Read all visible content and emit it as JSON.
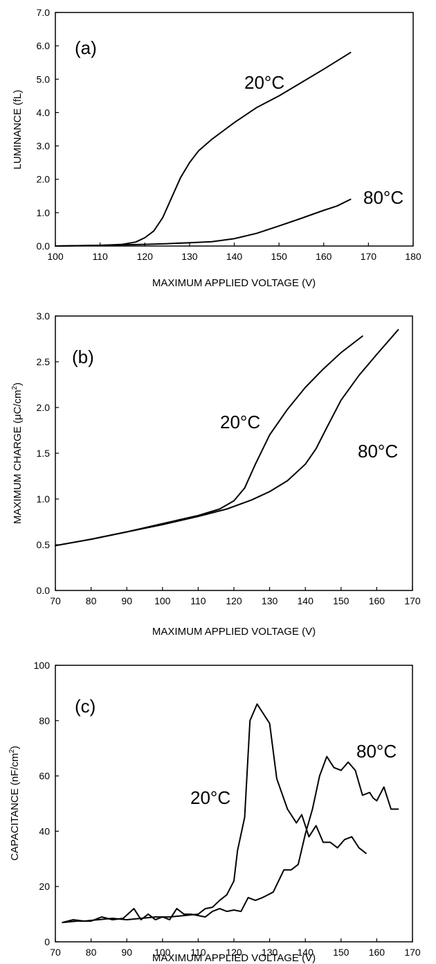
{
  "chart_data": [
    {
      "type": "line",
      "panel_label": "(a)",
      "xlabel": "MAXIMUM APPLIED VOLTAGE (V)",
      "ylabel": "LUMINANCE (fL)",
      "xlim": [
        100,
        180
      ],
      "ylim": [
        0,
        7
      ],
      "x_ticks": [
        "100",
        "110",
        "120",
        "130",
        "140",
        "150",
        "160",
        "170",
        "180"
      ],
      "y_ticks": [
        "0.0",
        "1.0",
        "2.0",
        "3.0",
        "4.0",
        "5.0",
        "6.0",
        "7.0"
      ],
      "grid": false,
      "series": [
        {
          "name": "20°C",
          "points": [
            [
              100,
              0
            ],
            [
              110,
              0.02
            ],
            [
              115,
              0.05
            ],
            [
              118,
              0.12
            ],
            [
              120,
              0.25
            ],
            [
              122,
              0.45
            ],
            [
              124,
              0.85
            ],
            [
              126,
              1.45
            ],
            [
              128,
              2.05
            ],
            [
              130,
              2.5
            ],
            [
              132,
              2.85
            ],
            [
              135,
              3.2
            ],
            [
              138,
              3.5
            ],
            [
              140,
              3.7
            ],
            [
              145,
              4.15
            ],
            [
              150,
              4.5
            ],
            [
              155,
              4.9
            ],
            [
              160,
              5.3
            ],
            [
              166,
              5.8
            ]
          ]
        },
        {
          "name": "80°C",
          "points": [
            [
              100,
              0
            ],
            [
              110,
              0.02
            ],
            [
              120,
              0.05
            ],
            [
              125,
              0.07
            ],
            [
              130,
              0.1
            ],
            [
              135,
              0.13
            ],
            [
              140,
              0.22
            ],
            [
              145,
              0.38
            ],
            [
              150,
              0.6
            ],
            [
              155,
              0.83
            ],
            [
              160,
              1.07
            ],
            [
              163,
              1.2
            ],
            [
              166,
              1.4
            ]
          ]
        }
      ]
    },
    {
      "type": "line",
      "panel_label": "(b)",
      "xlabel": "MAXIMUM APPLIED VOLTAGE (V)",
      "ylabel": "MAXIMUM CHARGE (μC/cm²)",
      "ylabel_parts": [
        "MAXIMUM CHARGE (μC/cm",
        "2",
        ")"
      ],
      "xlim": [
        70,
        170
      ],
      "ylim": [
        0,
        3
      ],
      "x_ticks": [
        "70",
        "80",
        "90",
        "100",
        "110",
        "120",
        "130",
        "140",
        "150",
        "160",
        "170"
      ],
      "y_ticks": [
        "0.0",
        "0.5",
        "1.0",
        "1.5",
        "2.0",
        "2.5",
        "3.0"
      ],
      "grid": false,
      "series": [
        {
          "name": "20°C",
          "points": [
            [
              70,
              0.49
            ],
            [
              80,
              0.56
            ],
            [
              90,
              0.64
            ],
            [
              100,
              0.73
            ],
            [
              110,
              0.82
            ],
            [
              116,
              0.89
            ],
            [
              120,
              0.98
            ],
            [
              123,
              1.12
            ],
            [
              126,
              1.38
            ],
            [
              130,
              1.7
            ],
            [
              135,
              1.98
            ],
            [
              140,
              2.22
            ],
            [
              145,
              2.42
            ],
            [
              150,
              2.6
            ],
            [
              156,
              2.78
            ]
          ]
        },
        {
          "name": "80°C",
          "points": [
            [
              70,
              0.49
            ],
            [
              80,
              0.56
            ],
            [
              90,
              0.64
            ],
            [
              100,
              0.72
            ],
            [
              110,
              0.81
            ],
            [
              118,
              0.89
            ],
            [
              125,
              0.99
            ],
            [
              130,
              1.08
            ],
            [
              135,
              1.2
            ],
            [
              140,
              1.38
            ],
            [
              143,
              1.55
            ],
            [
              146,
              1.78
            ],
            [
              150,
              2.08
            ],
            [
              155,
              2.35
            ],
            [
              160,
              2.58
            ],
            [
              166,
              2.85
            ]
          ]
        }
      ]
    },
    {
      "type": "line",
      "panel_label": "(c)",
      "xlabel": "MAXIMUM APPLIED VOLTAGE (V)",
      "ylabel": "CAPACITANCE (nF/cm²)",
      "ylabel_parts": [
        "CAPACITANCE (nF/cm",
        "2",
        ")"
      ],
      "xlim": [
        70,
        170
      ],
      "ylim": [
        0,
        100
      ],
      "x_ticks": [
        "70",
        "80",
        "90",
        "100",
        "110",
        "120",
        "130",
        "140",
        "150",
        "160",
        "170"
      ],
      "y_ticks": [
        "0",
        "20",
        "40",
        "60",
        "80",
        "100"
      ],
      "grid": false,
      "series": [
        {
          "name": "20°C",
          "points": [
            [
              72,
              7
            ],
            [
              75,
              8
            ],
            [
              78,
              7.5
            ],
            [
              82,
              8
            ],
            [
              86,
              8.5
            ],
            [
              90,
              8
            ],
            [
              94,
              8.5
            ],
            [
              98,
              9
            ],
            [
              102,
              9
            ],
            [
              106,
              9.5
            ],
            [
              110,
              10
            ],
            [
              112,
              12
            ],
            [
              114,
              12.5
            ],
            [
              116,
              15
            ],
            [
              118,
              17
            ],
            [
              120,
              22
            ],
            [
              121,
              33
            ],
            [
              123,
              45
            ],
            [
              124.5,
              80
            ],
            [
              126.5,
              86
            ],
            [
              130,
              79
            ],
            [
              132,
              59
            ],
            [
              135,
              48
            ],
            [
              137.5,
              43
            ],
            [
              139,
              46
            ],
            [
              141,
              38
            ],
            [
              143,
              42
            ],
            [
              145,
              36
            ],
            [
              147,
              36
            ],
            [
              149,
              34
            ],
            [
              151,
              37
            ],
            [
              153,
              38
            ],
            [
              155,
              34
            ],
            [
              157,
              32
            ]
          ]
        },
        {
          "name": "80°C",
          "points": [
            [
              72,
              7
            ],
            [
              76,
              7.5
            ],
            [
              80,
              7.5
            ],
            [
              83,
              9
            ],
            [
              86,
              8
            ],
            [
              89,
              8.5
            ],
            [
              92,
              12
            ],
            [
              94,
              8
            ],
            [
              96,
              10
            ],
            [
              98,
              8
            ],
            [
              100,
              9
            ],
            [
              102,
              8
            ],
            [
              104,
              12
            ],
            [
              106,
              10
            ],
            [
              108,
              10
            ],
            [
              110,
              9.5
            ],
            [
              112,
              9
            ],
            [
              114,
              11
            ],
            [
              116,
              12
            ],
            [
              118,
              11
            ],
            [
              120,
              11.5
            ],
            [
              122,
              11
            ],
            [
              124,
              16
            ],
            [
              126,
              15
            ],
            [
              128,
              16
            ],
            [
              131,
              18
            ],
            [
              134,
              26
            ],
            [
              136,
              26
            ],
            [
              138,
              28
            ],
            [
              140,
              39
            ],
            [
              142,
              48
            ],
            [
              144,
              60
            ],
            [
              146,
              67
            ],
            [
              148,
              63
            ],
            [
              150,
              62
            ],
            [
              152,
              65
            ],
            [
              154,
              62
            ],
            [
              156,
              53
            ],
            [
              158,
              54
            ],
            [
              159,
              52
            ],
            [
              160,
              51
            ],
            [
              162,
              56
            ],
            [
              164,
              48
            ],
            [
              166,
              48
            ]
          ]
        }
      ]
    }
  ]
}
